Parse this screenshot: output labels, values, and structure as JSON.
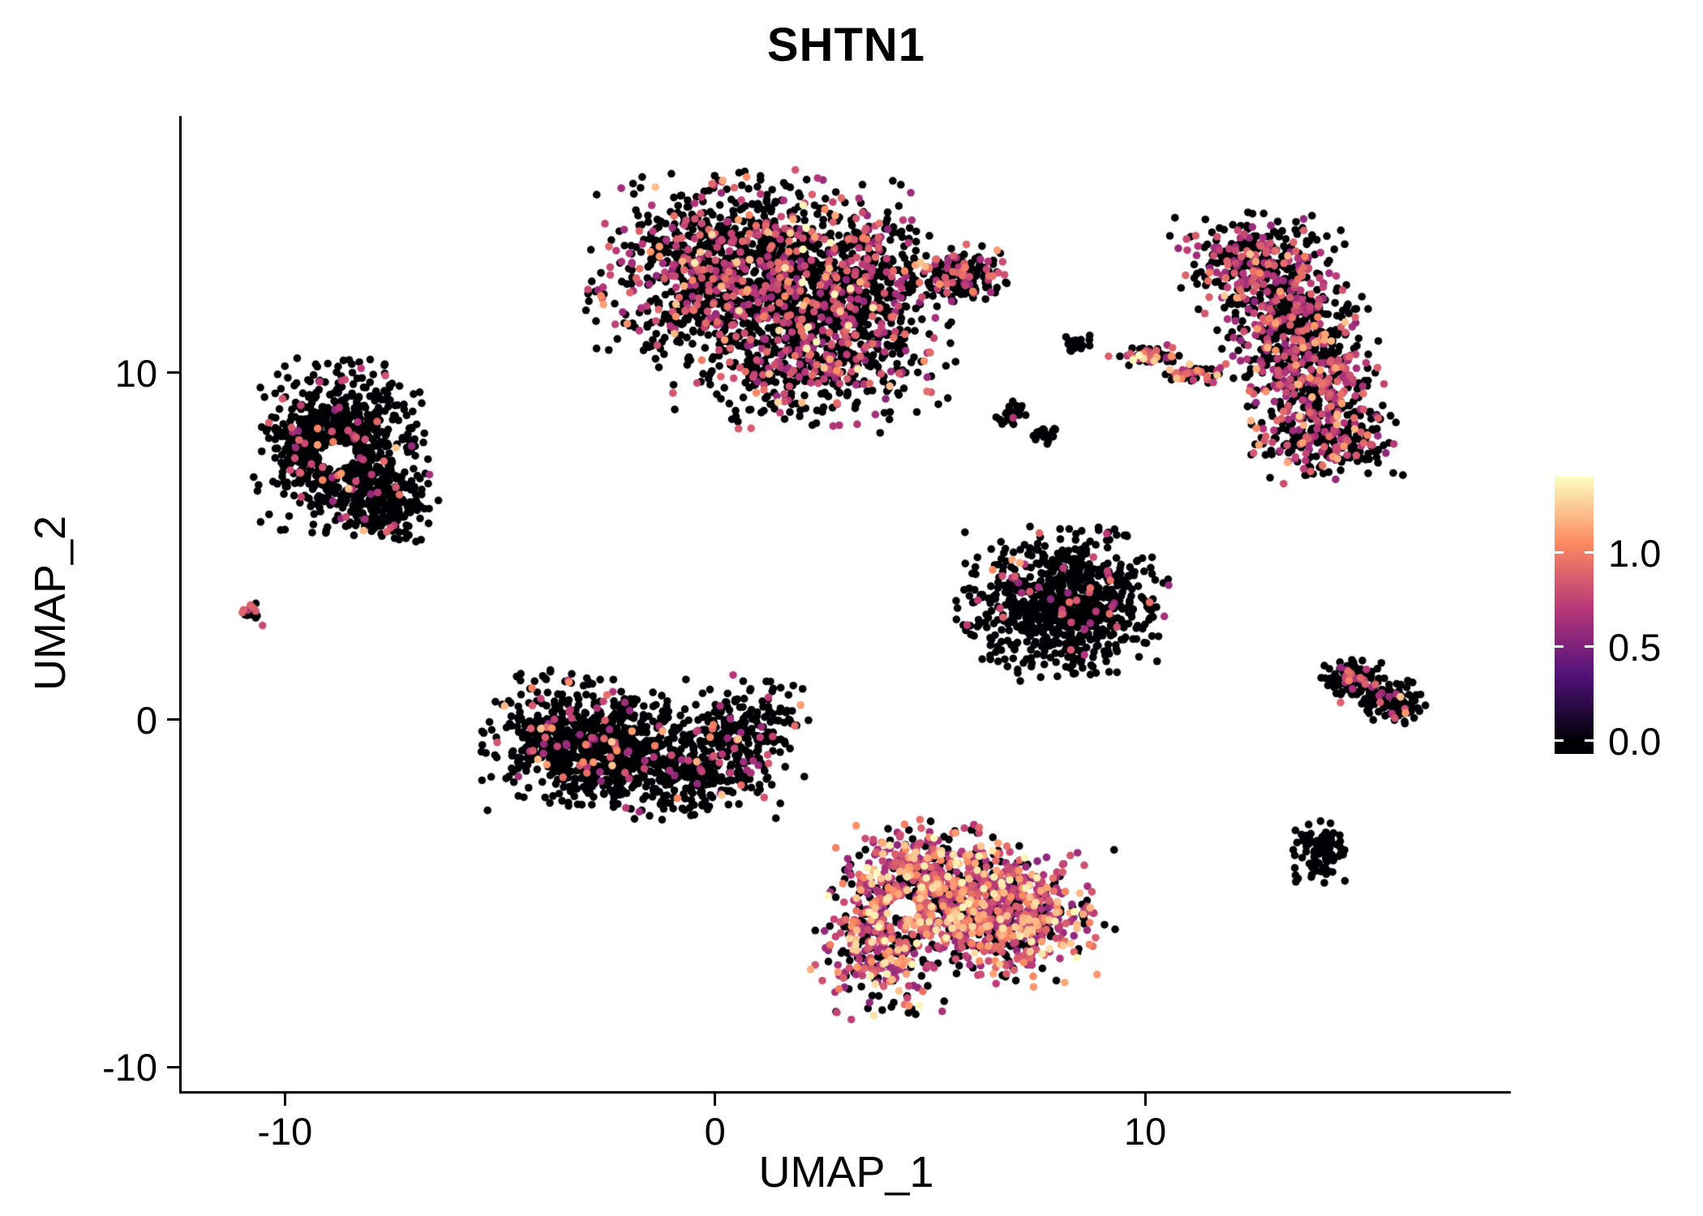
{
  "chart_data": {
    "type": "scatter",
    "title": "SHTN1",
    "xlabel": "UMAP_1",
    "ylabel": "UMAP_2",
    "xlim": [
      -12.4,
      18.5
    ],
    "ylim": [
      -10.7,
      17.4
    ],
    "grid": false,
    "legend_position": "right",
    "x_ticks": [
      {
        "value": -10,
        "label": "-10"
      },
      {
        "value": 0,
        "label": "0"
      },
      {
        "value": 10,
        "label": "10"
      }
    ],
    "y_ticks": [
      {
        "value": 10,
        "label": "10"
      },
      {
        "value": 0,
        "label": "0"
      },
      {
        "value": -10,
        "label": "-10"
      }
    ],
    "colorbar": {
      "ticks": [
        {
          "value": 1.0,
          "label": "1.0"
        },
        {
          "value": 0.5,
          "label": "0.5"
        },
        {
          "value": 0.0,
          "label": "0.0"
        }
      ],
      "bar_vmin": -0.07,
      "bar_vmax": 1.405,
      "value_max": 1.4
    },
    "colormap": {
      "name": "magma",
      "stops": [
        [
          0.0,
          "#000004"
        ],
        [
          0.25,
          "#51127c"
        ],
        [
          0.5,
          "#b73779"
        ],
        [
          0.75,
          "#fc8961"
        ],
        [
          1.0,
          "#fcfdbf"
        ]
      ]
    },
    "point": {
      "radius_px": 4.8,
      "seed": 42,
      "expr_ranges": {
        "mid": [
          0.55,
          0.95
        ],
        "high": [
          1.0,
          1.25
        ],
        "top": [
          1.28,
          1.4
        ]
      }
    },
    "clusters": [
      {
        "name": "top-center-large",
        "expr": {
          "zero": 0.72,
          "mid": 0.25,
          "high": 0.025,
          "top": 0.005
        },
        "components": [
          {
            "cx": 0.8,
            "cy": 12.9,
            "sx": 1.6,
            "sy": 1.25,
            "n": 1350
          },
          {
            "cx": 2.3,
            "cy": 10.6,
            "sx": 1.4,
            "sy": 1.0,
            "n": 650
          },
          {
            "cx": 3.3,
            "cy": 12.7,
            "sx": 0.9,
            "sy": 0.85,
            "n": 260
          },
          {
            "cx": 5.7,
            "cy": 12.8,
            "sx": 0.55,
            "sy": 0.38,
            "n": 170
          }
        ]
      },
      {
        "name": "left-cluster",
        "expr": {
          "zero": 0.93,
          "mid": 0.06,
          "high": 0.01
        },
        "hole": {
          "cx": -8.8,
          "cy": 7.6,
          "r": 0.4
        },
        "components": [
          {
            "cx": -8.7,
            "cy": 7.9,
            "sx": 0.85,
            "sy": 1.05,
            "n": 780
          },
          {
            "cx": -7.6,
            "cy": 6.1,
            "sx": 0.5,
            "sy": 0.5,
            "n": 160
          }
        ]
      },
      {
        "name": "far-left-dot",
        "expr": {
          "zero": 0.85,
          "mid": 0.15
        },
        "components": [
          {
            "cx": -10.8,
            "cy": 3.0,
            "sx": 0.13,
            "sy": 0.16,
            "n": 14
          }
        ]
      },
      {
        "name": "mid-left-cluster",
        "expr": {
          "zero": 0.9,
          "mid": 0.08,
          "high": 0.02
        },
        "components": [
          {
            "cx": -3.1,
            "cy": -0.6,
            "sx": 1.0,
            "sy": 0.85,
            "n": 620
          },
          {
            "cx": -1.0,
            "cy": -1.3,
            "sx": 1.1,
            "sy": 0.75,
            "n": 420
          },
          {
            "cx": 0.7,
            "cy": -0.3,
            "sx": 0.65,
            "sy": 0.75,
            "n": 190
          }
        ]
      },
      {
        "name": "center-right-triangle",
        "expr": {
          "zero": 0.94,
          "mid": 0.055,
          "high": 0.005
        },
        "components": [
          {
            "cx": 8.1,
            "cy": 3.3,
            "sx": 1.05,
            "sy": 0.95,
            "n": 820
          }
        ]
      },
      {
        "name": "bottom-center-bright",
        "expr": {
          "zero": 0.32,
          "mid": 0.48,
          "high": 0.15,
          "top": 0.05
        },
        "hole": {
          "cx": 4.4,
          "cy": -5.4,
          "r": 0.35
        },
        "components": [
          {
            "cx": 5.0,
            "cy": -4.6,
            "sx": 0.95,
            "sy": 0.75,
            "n": 520
          },
          {
            "cx": 6.8,
            "cy": -5.7,
            "sx": 1.05,
            "sy": 0.85,
            "n": 600
          },
          {
            "cx": 3.9,
            "cy": -6.4,
            "sx": 0.7,
            "sy": 0.95,
            "n": 340
          }
        ]
      },
      {
        "name": "right-crescent",
        "expr": {
          "zero": 0.62,
          "mid": 0.35,
          "high": 0.03
        },
        "components": [
          {
            "cx": 12.6,
            "cy": 13.1,
            "sx": 0.85,
            "sy": 0.65,
            "n": 300
          },
          {
            "cx": 13.4,
            "cy": 11.6,
            "sx": 0.75,
            "sy": 0.85,
            "n": 330
          },
          {
            "cx": 13.9,
            "cy": 9.7,
            "sx": 0.7,
            "sy": 0.85,
            "n": 330
          },
          {
            "cx": 14.3,
            "cy": 8.1,
            "sx": 0.8,
            "sy": 0.55,
            "n": 240
          }
        ]
      },
      {
        "name": "thin-streak",
        "expr": {
          "zero": 0.45,
          "mid": 0.4,
          "high": 0.12,
          "top": 0.03
        },
        "components": [
          {
            "cx": 10.1,
            "cy": 10.5,
            "sx": 0.4,
            "sy": 0.14,
            "n": 50
          },
          {
            "cx": 11.1,
            "cy": 10.0,
            "sx": 0.4,
            "sy": 0.14,
            "n": 45
          }
        ]
      },
      {
        "name": "small-clumps",
        "expr": {
          "zero": 0.98,
          "mid": 0.02
        },
        "components": [
          {
            "cx": 6.9,
            "cy": 8.8,
            "sx": 0.18,
            "sy": 0.16,
            "n": 26
          },
          {
            "cx": 7.7,
            "cy": 8.3,
            "sx": 0.16,
            "sy": 0.15,
            "n": 22
          },
          {
            "cx": 8.4,
            "cy": 10.8,
            "sx": 0.17,
            "sy": 0.15,
            "n": 20
          }
        ]
      },
      {
        "name": "right-small-cluster",
        "expr": {
          "zero": 0.87,
          "mid": 0.12,
          "high": 0.01
        },
        "components": [
          {
            "cx": 14.9,
            "cy": 1.1,
            "sx": 0.42,
            "sy": 0.28,
            "n": 120
          },
          {
            "cx": 15.7,
            "cy": 0.5,
            "sx": 0.38,
            "sy": 0.28,
            "n": 100
          }
        ]
      },
      {
        "name": "bottom-right-dot",
        "expr": {
          "zero": 1.0
        },
        "components": [
          {
            "cx": 14.1,
            "cy": -3.8,
            "sx": 0.3,
            "sy": 0.38,
            "n": 95
          }
        ]
      }
    ]
  }
}
